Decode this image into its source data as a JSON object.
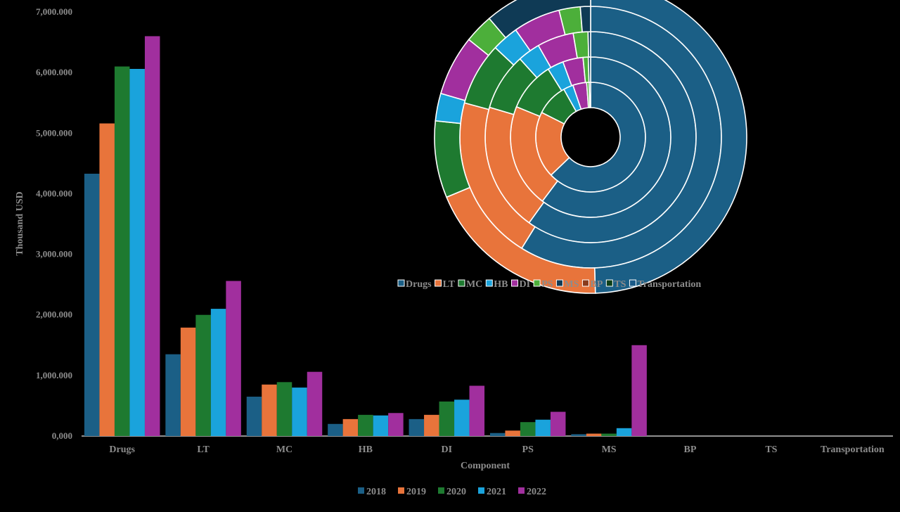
{
  "chart_data": [
    {
      "type": "bar",
      "xlabel": "Component",
      "ylabel": "Thousand USD",
      "ylim": [
        0,
        7000000
      ],
      "yticks": [
        "0,000",
        "1,000.000",
        "2,000.000",
        "3,000.000",
        "4,000.000",
        "5,000.000",
        "6,000.000",
        "7,000.000"
      ],
      "ytick_values": [
        0,
        1000000,
        2000000,
        3000000,
        4000000,
        5000000,
        6000000,
        7000000
      ],
      "categories": [
        "Drugs",
        "LT",
        "MC",
        "HB",
        "DI",
        "PS",
        "MS",
        "BP",
        "TS",
        "Transportation"
      ],
      "legend_position": "bottom",
      "series": [
        {
          "name": "2018",
          "color": "#1b5f86",
          "values": [
            4330000,
            1350000,
            650000,
            200000,
            280000,
            50000,
            30000,
            0,
            0,
            0
          ]
        },
        {
          "name": "2019",
          "color": "#e8743b",
          "values": [
            5160000,
            1790000,
            850000,
            280000,
            350000,
            90000,
            40000,
            0,
            0,
            0
          ]
        },
        {
          "name": "2020",
          "color": "#1e7a30",
          "values": [
            6100000,
            2000000,
            890000,
            350000,
            570000,
            230000,
            40000,
            0,
            0,
            0
          ]
        },
        {
          "name": "2021",
          "color": "#1aa3dc",
          "values": [
            6060000,
            2100000,
            800000,
            340000,
            600000,
            270000,
            130000,
            0,
            0,
            0
          ]
        },
        {
          "name": "2022",
          "color": "#a12f9e",
          "values": [
            6600000,
            2560000,
            1060000,
            380000,
            830000,
            400000,
            1500000,
            0,
            0,
            0
          ]
        }
      ]
    },
    {
      "type": "pie",
      "subtype": "multi-ring doughnut",
      "rings_inner_to_outer": [
        "2018",
        "2019",
        "2020",
        "2021",
        "2022"
      ],
      "categories": [
        "Drugs",
        "LT",
        "MC",
        "HB",
        "DI",
        "PS",
        "MS",
        "BP",
        "TS",
        "Transportation"
      ],
      "colors": [
        "#1b5f86",
        "#e8743b",
        "#1e7a30",
        "#1aa3dc",
        "#a12f9e",
        "#4caf3a",
        "#0f3a55",
        "#8a3b1c",
        "#0d3f18",
        "#1a5a88"
      ],
      "legend_position": "middle-right",
      "note": "ring shares use the bar chart series values"
    }
  ]
}
